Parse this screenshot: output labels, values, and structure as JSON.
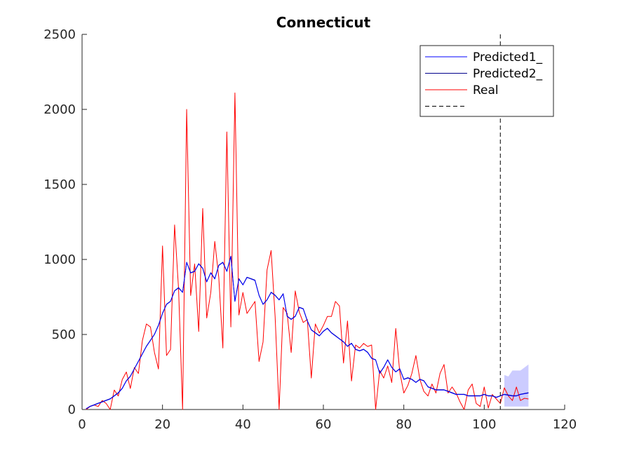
{
  "chart_data": {
    "type": "line",
    "title": "Connecticut",
    "xlabel": "",
    "ylabel": "",
    "xlim": [
      0,
      120
    ],
    "ylim": [
      0,
      2500
    ],
    "xticks": [
      "0",
      "20",
      "40",
      "60",
      "80",
      "100",
      "120"
    ],
    "yticks": [
      "0",
      "500",
      "1000",
      "1500",
      "2000",
      "2500"
    ],
    "grid": false,
    "legend_position": "top-right",
    "series": [
      {
        "name": "Predicted1_",
        "color": "#0000ff",
        "x": [
          1,
          2,
          3,
          4,
          5,
          6,
          7,
          8,
          9,
          10,
          11,
          12,
          13,
          14,
          15,
          16,
          17,
          18,
          19,
          20,
          21,
          22,
          23,
          24,
          25,
          26,
          27,
          28,
          29,
          30,
          31,
          32,
          33,
          34,
          35,
          36,
          37,
          38,
          39,
          40,
          41,
          42,
          43,
          44,
          45,
          46,
          47,
          48,
          49,
          50,
          51,
          52,
          53,
          54,
          55,
          56,
          57,
          58,
          59,
          60,
          61,
          62,
          63,
          64,
          65,
          66,
          67,
          68,
          69,
          70,
          71,
          72,
          73,
          74,
          75,
          76,
          77,
          78,
          79,
          80,
          81,
          82,
          83,
          84,
          85,
          86,
          87,
          88,
          89,
          90,
          91,
          92,
          93,
          94,
          95,
          96,
          97,
          98,
          99,
          100,
          101,
          102,
          103,
          104,
          105,
          106,
          107,
          108,
          109,
          110,
          111
        ],
        "y": [
          5,
          20,
          30,
          40,
          50,
          60,
          70,
          90,
          110,
          140,
          190,
          220,
          270,
          320,
          370,
          420,
          460,
          500,
          560,
          640,
          700,
          720,
          790,
          810,
          780,
          980,
          910,
          920,
          970,
          940,
          850,
          910,
          870,
          960,
          980,
          920,
          1020,
          720,
          870,
          830,
          880,
          870,
          860,
          760,
          700,
          730,
          780,
          760,
          730,
          770,
          620,
          600,
          620,
          680,
          670,
          590,
          530,
          510,
          490,
          520,
          540,
          510,
          490,
          470,
          450,
          420,
          440,
          400,
          390,
          400,
          380,
          340,
          330,
          240,
          280,
          330,
          280,
          250,
          270,
          200,
          210,
          200,
          180,
          200,
          190,
          150,
          140,
          130,
          130,
          130,
          120,
          110,
          100,
          100,
          100,
          90,
          90,
          90,
          90,
          100,
          90,
          90,
          80,
          90,
          100,
          95,
          90,
          90,
          100,
          105,
          110
        ]
      },
      {
        "name": "Predicted2_",
        "color": "#00008b",
        "x": [
          1,
          2,
          3,
          4,
          5,
          6,
          7,
          8,
          9,
          10,
          11,
          12,
          13,
          14,
          15,
          16,
          17,
          18,
          19,
          20,
          21,
          22,
          23,
          24,
          25,
          26,
          27,
          28,
          29,
          30,
          31,
          32,
          33,
          34,
          35,
          36,
          37,
          38,
          39,
          40,
          41,
          42,
          43,
          44,
          45,
          46,
          47,
          48,
          49,
          50,
          51,
          52,
          53,
          54,
          55,
          56,
          57,
          58,
          59,
          60,
          61,
          62,
          63,
          64,
          65,
          66,
          67,
          68,
          69,
          70,
          71,
          72,
          73,
          74,
          75,
          76,
          77,
          78,
          79,
          80,
          81,
          82,
          83,
          84,
          85,
          86,
          87,
          88,
          89,
          90,
          91,
          92,
          93,
          94,
          95,
          96,
          97,
          98,
          99,
          100,
          101,
          102,
          103,
          104,
          105,
          106,
          107,
          108,
          109,
          110,
          111
        ],
        "y": [
          5,
          22,
          32,
          42,
          52,
          62,
          72,
          92,
          112,
          142,
          192,
          222,
          272,
          322,
          372,
          422,
          462,
          502,
          562,
          642,
          702,
          722,
          792,
          812,
          782,
          982,
          912,
          922,
          972,
          942,
          852,
          912,
          872,
          962,
          982,
          922,
          1022,
          722,
          872,
          832,
          882,
          872,
          862,
          762,
          702,
          732,
          782,
          762,
          732,
          772,
          622,
          602,
          622,
          682,
          672,
          592,
          532,
          512,
          492,
          522,
          542,
          512,
          492,
          472,
          452,
          422,
          442,
          402,
          392,
          402,
          382,
          342,
          332,
          242,
          282,
          332,
          282,
          252,
          272,
          202,
          212,
          202,
          182,
          202,
          192,
          152,
          142,
          132,
          132,
          132,
          122,
          112,
          102,
          102,
          102,
          92,
          92,
          92,
          92,
          102,
          92,
          92,
          82,
          92,
          102,
          97,
          92,
          92,
          102,
          107,
          112
        ]
      },
      {
        "name": "Real",
        "color": "#ff0000",
        "x": [
          1,
          2,
          3,
          4,
          5,
          6,
          7,
          8,
          9,
          10,
          11,
          12,
          13,
          14,
          15,
          16,
          17,
          18,
          19,
          20,
          21,
          22,
          23,
          24,
          25,
          26,
          27,
          28,
          29,
          30,
          31,
          32,
          33,
          34,
          35,
          36,
          37,
          38,
          39,
          40,
          41,
          42,
          43,
          44,
          45,
          46,
          47,
          48,
          49,
          50,
          51,
          52,
          53,
          54,
          55,
          56,
          57,
          58,
          59,
          60,
          61,
          62,
          63,
          64,
          65,
          66,
          67,
          68,
          69,
          70,
          71,
          72,
          73,
          74,
          75,
          76,
          77,
          78,
          79,
          80,
          81,
          82,
          83,
          84,
          85,
          86,
          87,
          88,
          89,
          90,
          91,
          92,
          93,
          94,
          95,
          96,
          97,
          98,
          99,
          100,
          101,
          102,
          103,
          104,
          105,
          106,
          107,
          108,
          109,
          110,
          111
        ],
        "y": [
          0,
          20,
          30,
          20,
          60,
          40,
          0,
          130,
          90,
          200,
          250,
          140,
          280,
          240,
          460,
          570,
          550,
          380,
          270,
          1090,
          360,
          400,
          1230,
          800,
          0,
          2000,
          760,
          970,
          520,
          1340,
          610,
          780,
          1120,
          880,
          410,
          1850,
          550,
          2110,
          630,
          780,
          640,
          680,
          720,
          320,
          450,
          930,
          1060,
          620,
          0,
          680,
          640,
          380,
          790,
          650,
          580,
          600,
          210,
          570,
          510,
          560,
          620,
          620,
          720,
          690,
          310,
          590,
          190,
          430,
          410,
          440,
          420,
          430,
          0,
          260,
          210,
          290,
          180,
          540,
          250,
          110,
          160,
          240,
          360,
          200,
          120,
          90,
          170,
          110,
          240,
          300,
          110,
          150,
          110,
          50,
          0,
          130,
          170,
          40,
          20,
          150,
          10,
          100,
          70,
          40,
          145,
          90,
          60,
          150,
          60,
          75,
          70
        ]
      }
    ],
    "prediction_band": {
      "color": "#0000ff",
      "opacity": 0.2,
      "x": [
        105,
        106,
        107,
        108,
        109,
        110,
        111
      ],
      "upper": [
        230,
        220,
        260,
        260,
        260,
        280,
        300
      ],
      "lower": [
        20,
        20,
        20,
        20,
        20,
        20,
        20
      ]
    },
    "reference_line": {
      "x": 104,
      "style": "dashed",
      "color": "#000000"
    }
  }
}
